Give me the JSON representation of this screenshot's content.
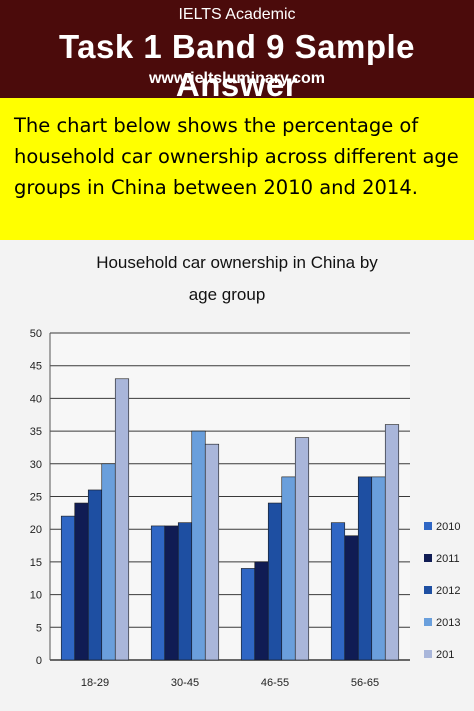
{
  "header": {
    "label": "IELTS Academic",
    "title": "Task 1 Band 9 Sample Answer",
    "website": "www.ieltsluminary.com"
  },
  "task": {
    "prompt": "The chart below shows the percentage of household car ownership across different age groups in China between 2010 and 2014."
  },
  "colors": {
    "header_bg": "#4b0b0b",
    "task_bg": "#ffff00",
    "series": [
      "#2f66c4",
      "#101c54",
      "#1e4fa2",
      "#6a9fdc",
      "#a9b6da"
    ]
  },
  "chart_data": {
    "type": "bar",
    "title_lines": [
      "Household car ownership in China by",
      "age group"
    ],
    "categories": [
      "18-29",
      "30-45",
      "46-55",
      "56-65"
    ],
    "series": [
      {
        "name": "2010",
        "values": [
          22,
          20.5,
          14,
          21
        ]
      },
      {
        "name": "2011",
        "values": [
          24,
          20.5,
          15,
          19
        ]
      },
      {
        "name": "2012",
        "values": [
          26,
          21,
          24,
          28
        ]
      },
      {
        "name": "2013",
        "values": [
          30,
          35,
          28,
          28
        ]
      },
      {
        "name": "201",
        "values": [
          43,
          33,
          34,
          36
        ]
      }
    ],
    "ylim": [
      0,
      50
    ],
    "yticks": [
      0,
      5,
      10,
      15,
      20,
      25,
      30,
      35,
      40,
      45,
      50
    ],
    "grid": true,
    "legend": "right"
  }
}
